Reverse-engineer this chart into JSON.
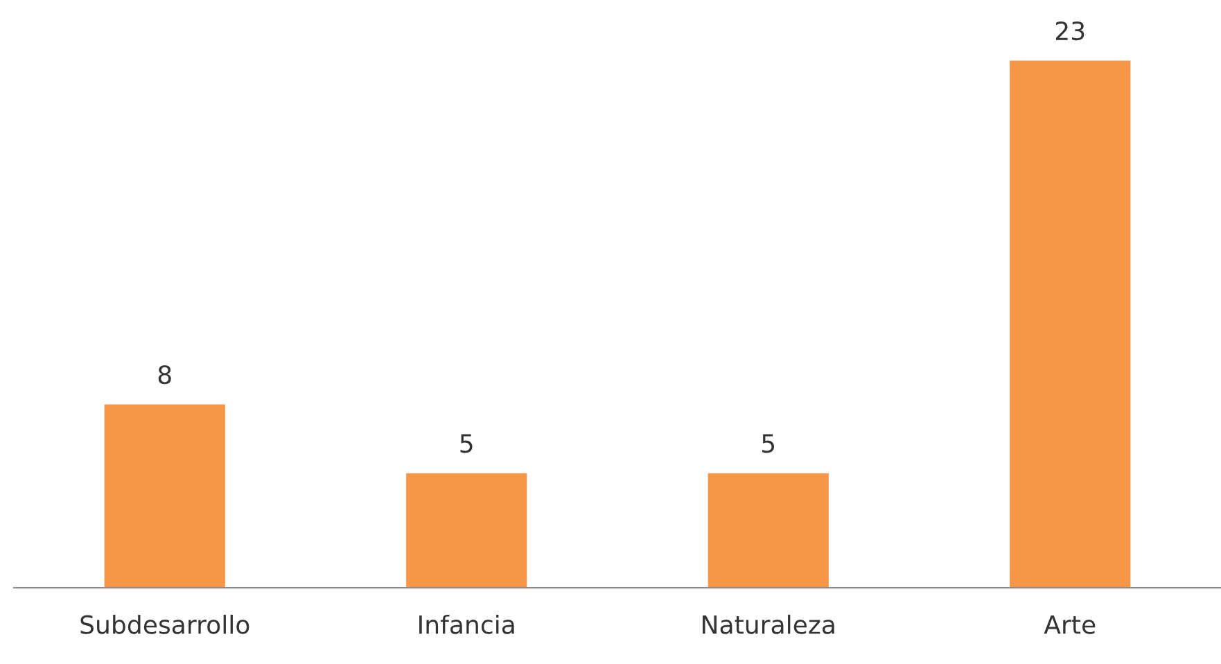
{
  "chart_data": {
    "type": "bar",
    "categories": [
      "Subdesarrollo",
      "Infancia",
      "Naturaleza",
      "Arte"
    ],
    "values": [
      8,
      5,
      5,
      23
    ],
    "color": "#f79646",
    "data_labels": true,
    "grid": false,
    "legend": false
  }
}
